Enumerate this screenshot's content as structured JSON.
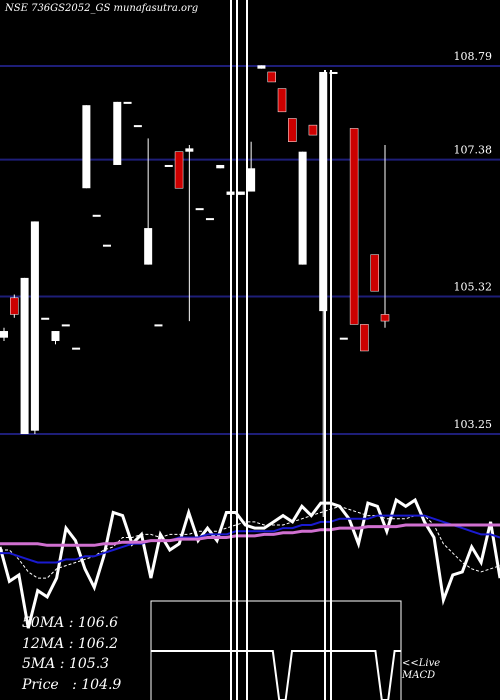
{
  "header": {
    "symbol_line": "NSE 736GS2052_GS munafasutra.org"
  },
  "colors": {
    "background": "#000000",
    "grid": "#1e1e78",
    "up_candle": "#ffffff",
    "down_candle": "#cc0000",
    "ma_fast": "#ffffff",
    "ma_mid": "#1a1ad0",
    "ma_slow": "#d070d0"
  },
  "chart_data": {
    "type": "candlestick",
    "price_axis": {
      "ticks": [
        "108.79",
        "107.38",
        "105.32",
        "103.25"
      ],
      "tick_values": [
        108.79,
        107.38,
        105.32,
        103.25
      ],
      "range": [
        102.0,
        109.7
      ]
    },
    "candles": [
      {
        "dir": "up",
        "o": 104.8,
        "c": 104.7,
        "h": 104.85,
        "l": 104.65
      },
      {
        "dir": "down",
        "o": 105.3,
        "c": 105.05,
        "h": 105.35,
        "l": 105.0
      },
      {
        "dir": "up",
        "o": 103.25,
        "c": 105.6,
        "h": 105.6,
        "l": 103.25
      },
      {
        "dir": "up",
        "o": 103.3,
        "c": 106.45,
        "h": 106.45,
        "l": 103.25
      },
      {
        "dir": "up",
        "o": 105.0,
        "c": 105.0,
        "h": 105.0,
        "l": 105.0
      },
      {
        "dir": "up",
        "o": 104.65,
        "c": 104.8,
        "h": 104.8,
        "l": 104.6
      },
      {
        "dir": "up",
        "o": 104.9,
        "c": 104.9,
        "h": 104.9,
        "l": 104.9
      },
      {
        "dir": "up",
        "o": 104.55,
        "c": 104.55,
        "h": 104.55,
        "l": 104.55
      },
      {
        "dir": "up",
        "o": 106.95,
        "c": 108.2,
        "h": 108.2,
        "l": 106.95
      },
      {
        "dir": "up",
        "o": 106.55,
        "c": 106.55,
        "h": 106.55,
        "l": 106.55
      },
      {
        "dir": "up",
        "o": 106.1,
        "c": 106.1,
        "h": 106.1,
        "l": 106.1
      },
      {
        "dir": "up",
        "o": 107.3,
        "c": 108.25,
        "h": 108.25,
        "l": 107.3
      },
      {
        "dir": "up",
        "o": 108.25,
        "c": 108.25,
        "h": 108.25,
        "l": 108.25
      },
      {
        "dir": "up",
        "o": 107.9,
        "c": 107.9,
        "h": 107.9,
        "l": 107.9
      },
      {
        "dir": "up",
        "o": 105.8,
        "c": 106.35,
        "h": 107.7,
        "l": 105.8
      },
      {
        "dir": "up",
        "o": 104.9,
        "c": 104.9,
        "h": 104.9,
        "l": 104.9
      },
      {
        "dir": "up",
        "o": 107.3,
        "c": 107.3,
        "h": 107.3,
        "l": 107.3
      },
      {
        "dir": "down",
        "o": 107.5,
        "c": 106.95,
        "h": 107.5,
        "l": 106.95
      },
      {
        "dir": "up",
        "o": 107.5,
        "c": 107.55,
        "h": 107.6,
        "l": 104.95
      },
      {
        "dir": "up",
        "o": 106.65,
        "c": 106.65,
        "h": 106.65,
        "l": 106.65
      },
      {
        "dir": "up",
        "o": 106.5,
        "c": 106.5,
        "h": 106.5,
        "l": 106.5
      },
      {
        "dir": "up",
        "o": 107.3,
        "c": 107.25,
        "h": 107.3,
        "l": 107.25
      },
      {
        "dir": "up",
        "o": 106.9,
        "c": 106.85,
        "h": 106.9,
        "l": 106.85
      },
      {
        "dir": "up",
        "o": 106.85,
        "c": 106.9,
        "h": 106.9,
        "l": 106.85
      },
      {
        "dir": "up",
        "o": 106.9,
        "c": 107.25,
        "h": 107.65,
        "l": 106.9
      },
      {
        "dir": "up",
        "o": 108.8,
        "c": 108.75,
        "h": 108.8,
        "l": 108.75
      },
      {
        "dir": "down",
        "o": 108.7,
        "c": 108.55,
        "h": 108.7,
        "l": 108.55
      },
      {
        "dir": "down",
        "o": 108.45,
        "c": 108.1,
        "h": 108.45,
        "l": 108.1
      },
      {
        "dir": "down",
        "o": 108.0,
        "c": 107.65,
        "h": 108.0,
        "l": 107.65
      },
      {
        "dir": "up",
        "o": 105.8,
        "c": 107.5,
        "h": 107.5,
        "l": 105.8
      },
      {
        "dir": "down",
        "o": 107.9,
        "c": 107.75,
        "h": 107.9,
        "l": 107.75
      },
      {
        "dir": "up",
        "o": 105.1,
        "c": 108.7,
        "h": 108.7,
        "l": 102.0
      },
      {
        "dir": "up",
        "o": 108.7,
        "c": 108.7,
        "h": 108.7,
        "l": 108.7
      },
      {
        "dir": "up",
        "o": 104.7,
        "c": 104.7,
        "h": 104.7,
        "l": 104.7
      },
      {
        "dir": "down",
        "o": 107.85,
        "c": 104.9,
        "h": 107.85,
        "l": 104.9
      },
      {
        "dir": "down",
        "o": 104.9,
        "c": 104.5,
        "h": 104.9,
        "l": 104.5
      },
      {
        "dir": "down",
        "o": 105.95,
        "c": 105.4,
        "h": 105.95,
        "l": 105.4
      },
      {
        "dir": "down",
        "o": 105.05,
        "c": 104.95,
        "h": 107.6,
        "l": 104.85
      }
    ],
    "indicator_lines": [
      {
        "key": "price",
        "values": [
          105.9,
          104.8,
          105.0,
          103.3,
          104.5,
          104.3,
          104.9,
          106.5,
          106.1,
          105.2,
          104.6,
          105.6,
          107.0,
          106.9,
          106.0,
          106.3,
          104.9,
          106.3,
          105.8,
          106.0,
          107.0,
          106.1,
          106.5,
          106.1,
          107.0,
          107.0,
          106.6,
          106.5,
          106.5,
          106.7,
          106.9,
          106.7,
          107.2,
          106.9,
          107.3,
          107.3,
          107.2,
          106.8,
          106.0,
          107.3,
          107.2,
          106.4,
          107.4,
          107.2,
          107.4,
          106.7,
          106.2,
          104.2,
          105.0,
          105.1,
          105.9,
          105.4,
          106.7,
          104.9
        ]
      },
      {
        "key": "ma_fast",
        "values": [
          105.8,
          105.8,
          105.5,
          105.1,
          104.9,
          104.9,
          105.2,
          105.3,
          105.4,
          105.5,
          105.6,
          105.8,
          105.9,
          106.2,
          106.2,
          106.3,
          106.3,
          106.2,
          106.3,
          106.3,
          106.3,
          106.4,
          106.4,
          106.4,
          106.5,
          106.6,
          106.7,
          106.7,
          106.6,
          106.6,
          106.6,
          106.7,
          106.8,
          106.9,
          107.0,
          107.1,
          107.2,
          107.1,
          107.0,
          106.9,
          106.9,
          106.8,
          106.8,
          106.8,
          106.9,
          106.9,
          106.6,
          106.0,
          105.7,
          105.4,
          105.2,
          105.1,
          105.2,
          105.3
        ]
      },
      {
        "key": "ma_mid",
        "values": [
          105.7,
          105.7,
          105.6,
          105.5,
          105.4,
          105.4,
          105.4,
          105.5,
          105.5,
          105.6,
          105.6,
          105.7,
          105.8,
          105.9,
          106.0,
          106.0,
          106.1,
          106.1,
          106.1,
          106.2,
          106.2,
          106.2,
          106.3,
          106.3,
          106.3,
          106.4,
          106.4,
          106.4,
          106.4,
          106.4,
          106.5,
          106.5,
          106.6,
          106.6,
          106.7,
          106.7,
          106.8,
          106.8,
          106.8,
          106.8,
          106.9,
          106.9,
          106.9,
          106.9,
          106.9,
          106.9,
          106.8,
          106.7,
          106.6,
          106.5,
          106.4,
          106.3,
          106.3,
          106.2
        ]
      },
      {
        "key": "ma_slow",
        "values": [
          106.0,
          106.0,
          106.0,
          106.0,
          106.0,
          105.95,
          105.95,
          105.95,
          105.95,
          105.95,
          105.95,
          106.0,
          106.0,
          106.05,
          106.05,
          106.05,
          106.1,
          106.1,
          106.1,
          106.15,
          106.15,
          106.15,
          106.2,
          106.2,
          106.2,
          106.25,
          106.25,
          106.25,
          106.3,
          106.3,
          106.35,
          106.35,
          106.4,
          106.4,
          106.45,
          106.45,
          106.5,
          106.5,
          106.5,
          106.55,
          106.55,
          106.55,
          106.55,
          106.6,
          106.6,
          106.6,
          106.6,
          106.6,
          106.6,
          106.6,
          106.6,
          106.6,
          106.6,
          106.6
        ]
      }
    ],
    "macd": {
      "line": [
        0.08,
        0.08,
        0.08,
        0.08,
        0.08,
        0.08,
        0.08,
        0.08,
        0.08,
        0.08,
        0.08,
        0.08,
        0.08,
        0.08,
        0.08,
        0.08,
        0.08,
        0.08,
        0.08,
        0.08,
        -0.5,
        -0.5,
        0.08,
        0.08,
        0.08,
        0.08,
        0.08,
        0.08,
        0.08,
        0.08,
        0.08,
        0.08,
        0.08,
        0.08,
        0.08,
        0.08,
        -0.5,
        -0.5,
        0.08,
        0.08
      ]
    },
    "stats": [
      {
        "label": "50MA",
        "value": "106.6"
      },
      {
        "label": "12MA",
        "value": "106.2"
      },
      {
        "label": "5MA",
        "value": "105.3"
      },
      {
        "label": "Price",
        "value": "104.9"
      }
    ],
    "macd_label": [
      "<<Live",
      "MACD"
    ],
    "legend_position": "bottom-left"
  }
}
